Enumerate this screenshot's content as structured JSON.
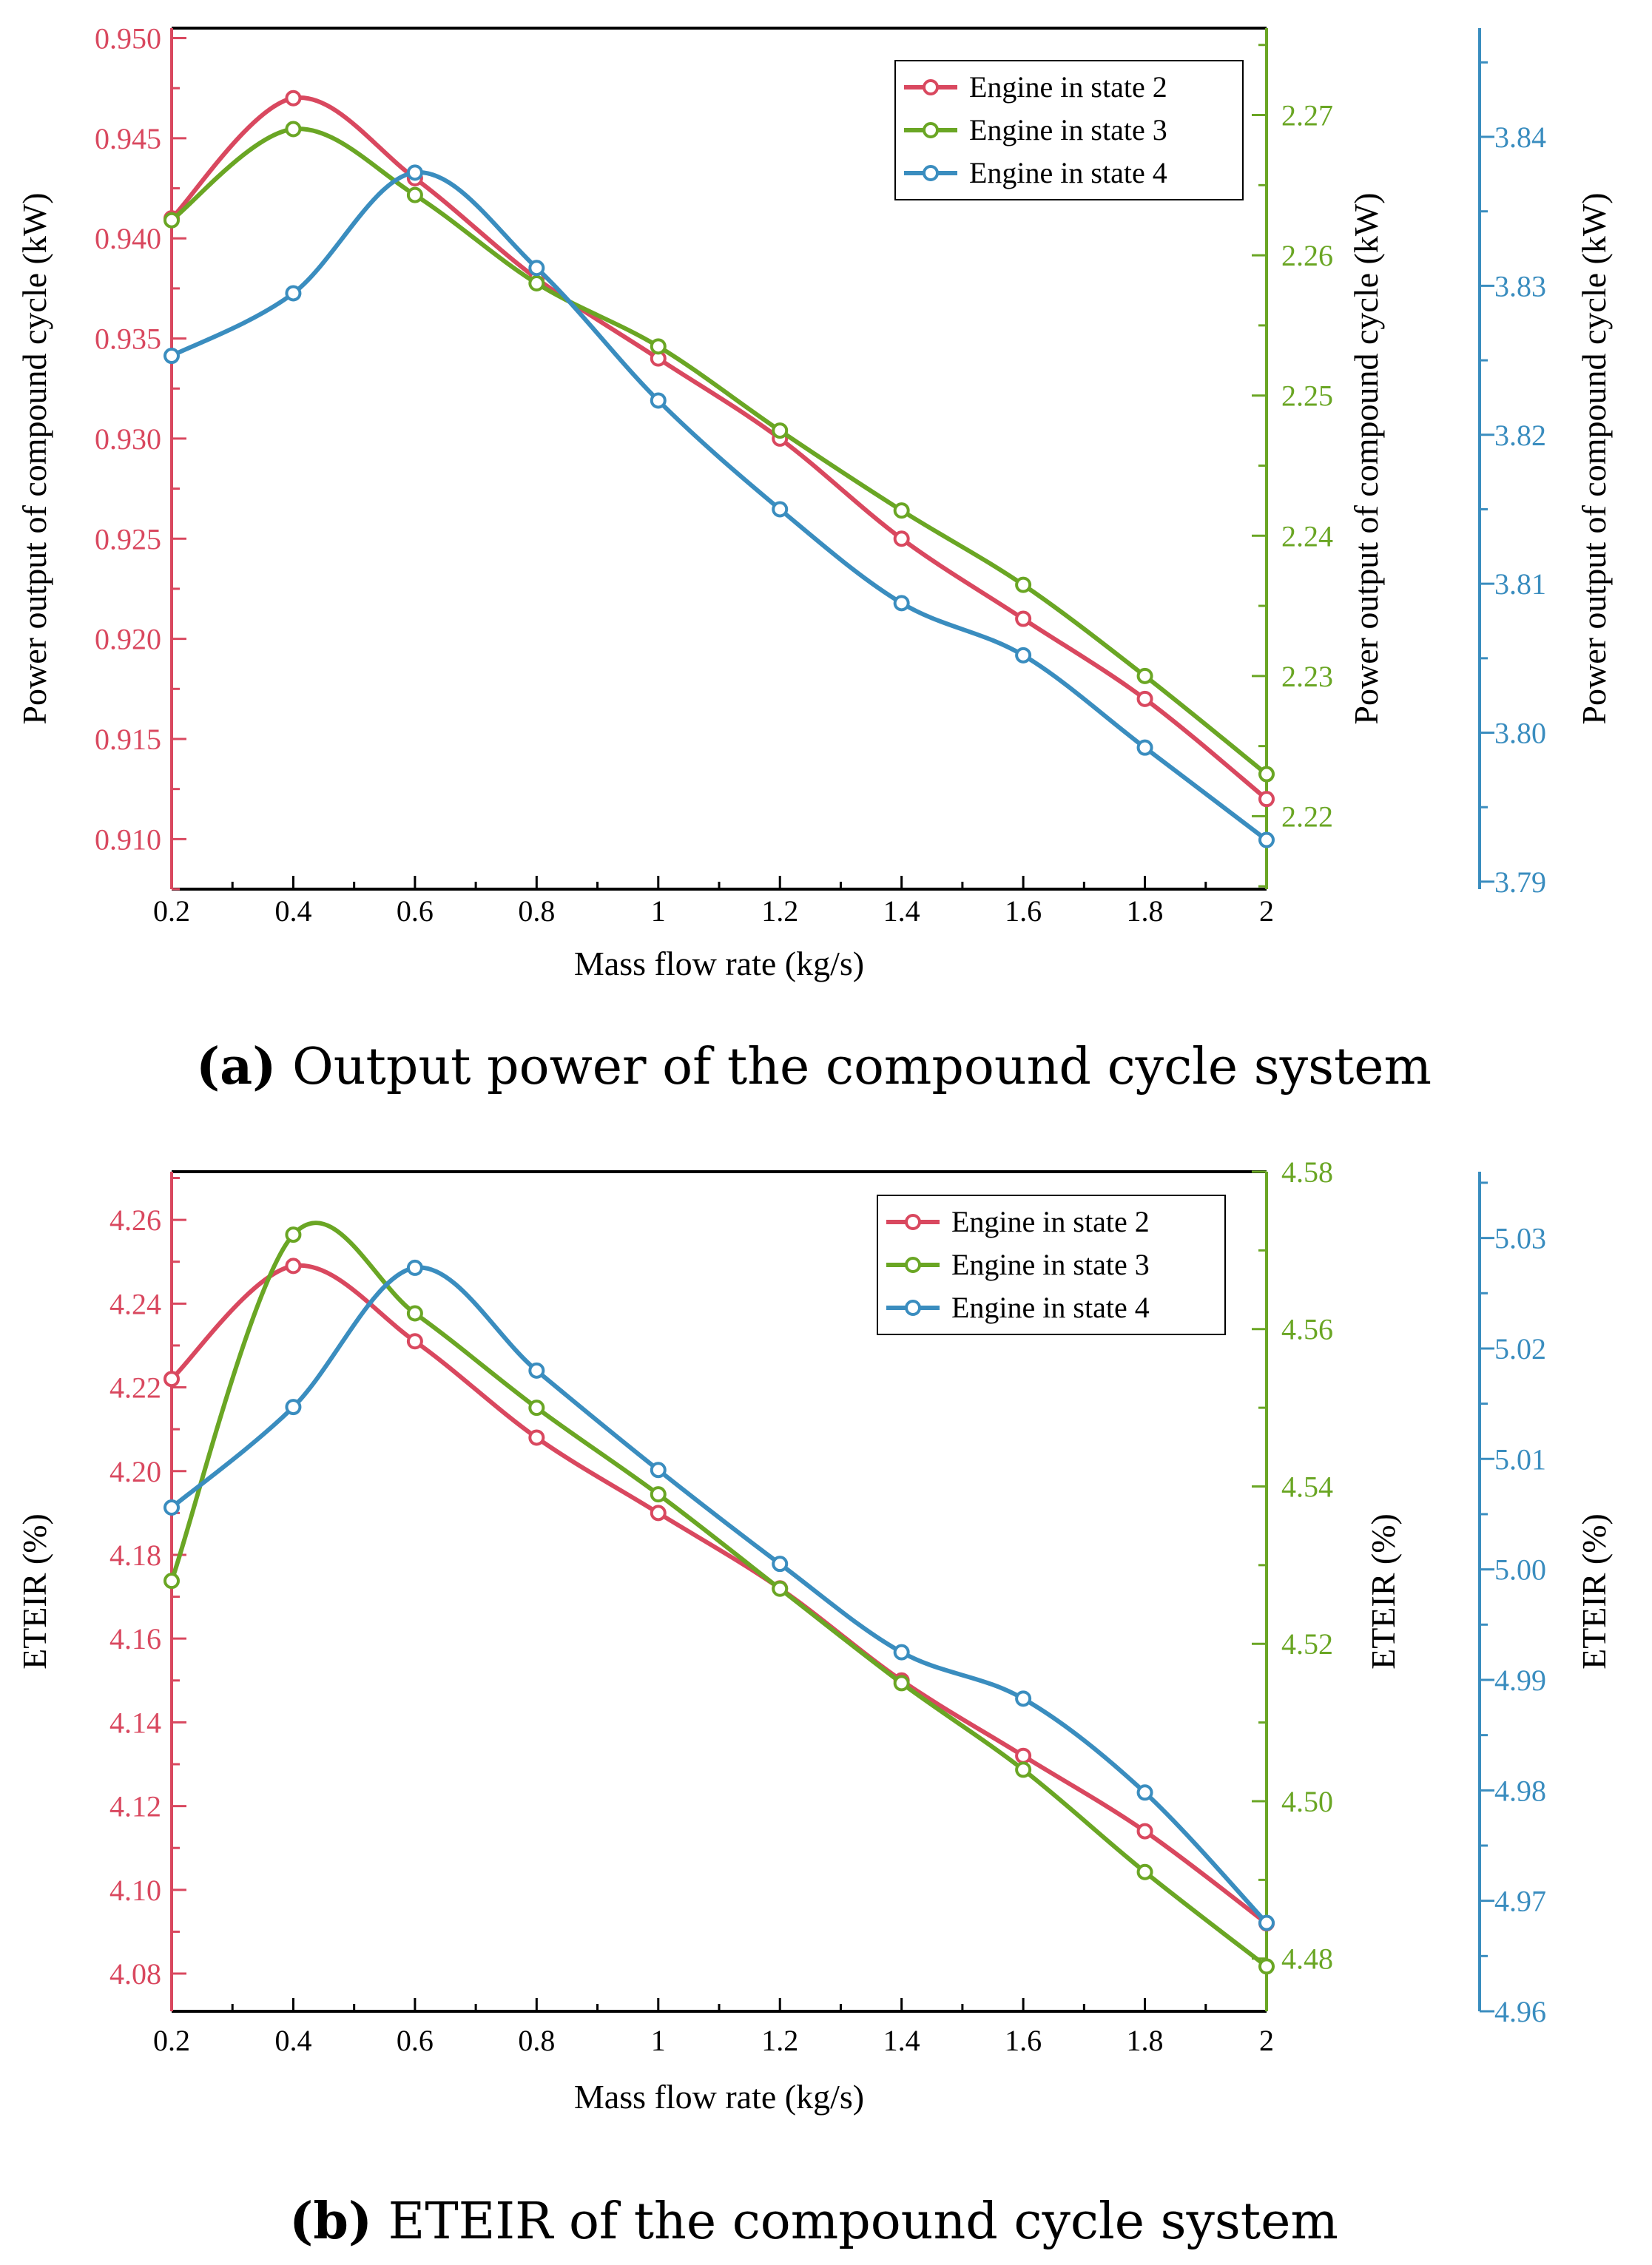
{
  "colors": {
    "red": "#d9485f",
    "green": "#6aa624",
    "blue": "#3a8dbf",
    "axis": "#000000"
  },
  "chart_data": [
    {
      "type": "line",
      "id": "a",
      "caption_label": "(a)",
      "caption_text": " Output power of the compound cycle system",
      "xlabel": "Mass flow rate (kg/s)",
      "x": [
        0.2,
        0.4,
        0.6,
        0.8,
        1.0,
        1.2,
        1.4,
        1.6,
        1.8,
        2.0
      ],
      "x_tick_labels": [
        "0.2",
        "0.4",
        "0.6",
        "0.8",
        "1",
        "1.2",
        "1.4",
        "1.6",
        "1.8",
        "2"
      ],
      "axes": [
        {
          "side": "left",
          "label": "Power output of compound cycle (kW)",
          "color": "red",
          "ylim": [
            0.9075,
            0.9505
          ],
          "ticks": [
            0.91,
            0.915,
            0.92,
            0.925,
            0.93,
            0.935,
            0.94,
            0.945,
            0.95
          ],
          "tick_labels": [
            "0.910",
            "0.915",
            "0.920",
            "0.925",
            "0.930",
            "0.935",
            "0.940",
            "0.945",
            "0.950"
          ]
        },
        {
          "side": "right1",
          "label": "Power output of compound cycle (kW)",
          "color": "green",
          "ylim": [
            2.2148,
            2.2762
          ],
          "ticks": [
            2.22,
            2.23,
            2.24,
            2.25,
            2.26,
            2.27
          ],
          "tick_labels": [
            "2.22",
            "2.23",
            "2.24",
            "2.25",
            "2.26",
            "2.27"
          ]
        },
        {
          "side": "right2",
          "label": "Power output of compound cycle (kW)",
          "color": "blue",
          "ylim": [
            3.7895,
            3.8473
          ],
          "ticks": [
            3.79,
            3.8,
            3.81,
            3.82,
            3.83,
            3.84
          ],
          "tick_labels": [
            "3.79",
            "3.80",
            "3.81",
            "3.82",
            "3.83",
            "3.84"
          ]
        }
      ],
      "series": [
        {
          "name": "Engine in state 2",
          "color": "red",
          "axis": 0,
          "values": [
            0.941,
            0.947,
            0.943,
            0.938,
            0.934,
            0.93,
            0.925,
            0.921,
            0.917,
            0.912
          ]
        },
        {
          "name": "Engine in state 3",
          "color": "green",
          "axis": 1,
          "values": [
            2.2625,
            2.269,
            2.2643,
            2.258,
            2.2535,
            2.2475,
            2.2418,
            2.2365,
            2.23,
            2.223
          ]
        },
        {
          "name": "Engine in state 4",
          "color": "blue",
          "axis": 2,
          "values": [
            3.8253,
            3.8295,
            3.8376,
            3.8312,
            3.8223,
            3.815,
            3.8087,
            3.8052,
            3.799,
            3.7928
          ]
        }
      ]
    },
    {
      "type": "line",
      "id": "b",
      "caption_label": "(b)",
      "caption_text": " ETEIR of the compound cycle system",
      "xlabel": "Mass flow rate (kg/s)",
      "x": [
        0.2,
        0.4,
        0.6,
        0.8,
        1.0,
        1.2,
        1.4,
        1.6,
        1.8,
        2.0
      ],
      "x_tick_labels": [
        "0.2",
        "0.4",
        "0.6",
        "0.8",
        "1",
        "1.2",
        "1.4",
        "1.6",
        "1.8",
        "2"
      ],
      "axes": [
        {
          "side": "left",
          "label": "ETEIR (%)",
          "color": "red",
          "ylim": [
            4.071,
            4.2715
          ],
          "ticks": [
            4.08,
            4.1,
            4.12,
            4.14,
            4.16,
            4.18,
            4.2,
            4.22,
            4.24,
            4.26
          ],
          "tick_labels": [
            "4.08",
            "4.10",
            "4.12",
            "4.14",
            "4.16",
            "4.18",
            "4.20",
            "4.22",
            "4.24",
            "4.26"
          ]
        },
        {
          "side": "right1",
          "label": "ETEIR (%)",
          "color": "green",
          "ylim": [
            4.4733,
            4.58
          ],
          "ticks": [
            4.48,
            4.5,
            4.52,
            4.54,
            4.56,
            4.58
          ],
          "tick_labels": [
            "4.48",
            "4.50",
            "4.52",
            "4.54",
            "4.56",
            "4.58"
          ]
        },
        {
          "side": "right2",
          "label": "ETEIR (%)",
          "color": "blue",
          "ylim": [
            4.96,
            5.036
          ],
          "ticks": [
            4.96,
            4.97,
            4.98,
            4.99,
            5.0,
            5.01,
            5.02,
            5.03
          ],
          "tick_labels": [
            "4.96",
            "4.97",
            "4.98",
            "4.99",
            "5.00",
            "5.01",
            "5.02",
            "5.03"
          ]
        }
      ],
      "series": [
        {
          "name": "Engine in state 2",
          "color": "red",
          "axis": 0,
          "values": [
            4.222,
            4.249,
            4.231,
            4.208,
            4.19,
            4.172,
            4.15,
            4.132,
            4.114,
            4.092
          ]
        },
        {
          "name": "Engine in state 3",
          "color": "green",
          "axis": 1,
          "values": [
            4.528,
            4.572,
            4.562,
            4.55,
            4.539,
            4.527,
            4.515,
            4.504,
            4.491,
            4.479
          ]
        },
        {
          "name": "Engine in state 4",
          "color": "blue",
          "axis": 2,
          "values": [
            5.0056,
            5.0147,
            5.0273,
            5.018,
            5.009,
            5.0005,
            4.9925,
            4.9883,
            4.9798,
            4.968
          ]
        }
      ]
    }
  ]
}
